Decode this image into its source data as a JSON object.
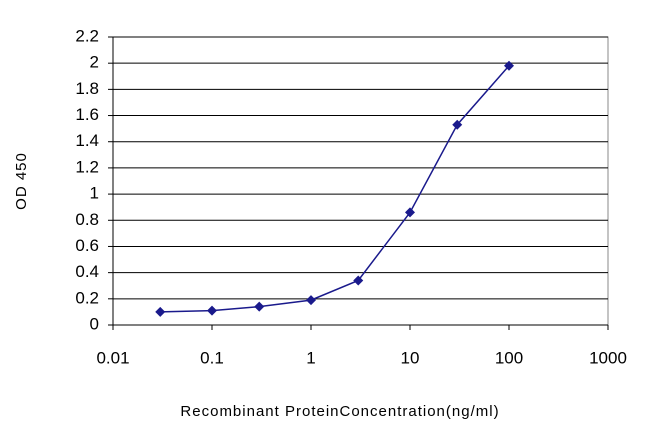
{
  "chart_data": {
    "type": "line",
    "x_label": "Recombinant ProteinConcentration(ng/ml)",
    "y_label": "OD 450",
    "x": [
      0.03,
      0.1,
      0.3,
      1,
      3,
      10,
      30,
      100
    ],
    "series": [
      {
        "color": "#1a1a8c",
        "values": [
          0.1,
          0.11,
          0.14,
          0.19,
          0.34,
          0.86,
          1.53,
          1.98
        ]
      }
    ],
    "xlim": [
      0.01,
      1000
    ],
    "xticks": [
      0.01,
      0.1,
      1,
      10,
      100,
      1000
    ],
    "xscale": "log",
    "ylim": [
      0,
      2.2
    ],
    "yticks": [
      0,
      0.2,
      0.4,
      0.6,
      0.8,
      1,
      1.2,
      1.4,
      1.6,
      1.8,
      2,
      2.2
    ],
    "grid": true
  }
}
